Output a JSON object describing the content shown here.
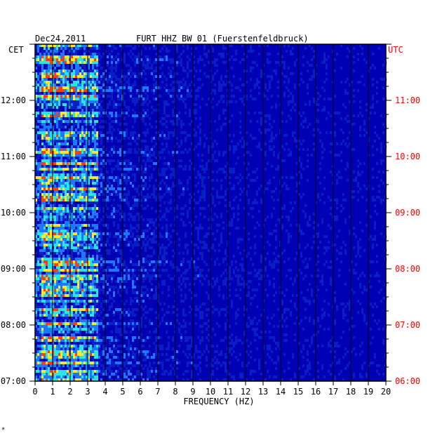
{
  "header": {
    "date": "Dec24,2011",
    "station": "FURT HHZ BW 01 (Fuerstenfeldbruck)"
  },
  "chart_data": {
    "type": "heatmap",
    "title": "FURT HHZ BW 01 (Fuerstenfeldbruck)",
    "date": "Dec24,2011",
    "xlabel": "FREQUENCY (HZ)",
    "x_ticks": [
      "0",
      "1",
      "2",
      "3",
      "4",
      "5",
      "6",
      "7",
      "8",
      "9",
      "10",
      "11",
      "12",
      "13",
      "14",
      "15",
      "16",
      "17",
      "18",
      "19",
      "20"
    ],
    "xlim": [
      0,
      20
    ],
    "left_axis": {
      "timezone": "CET",
      "ticks": [
        "07:00",
        "08:00",
        "09:00",
        "10:00",
        "11:00",
        "12:00"
      ],
      "range": [
        "07:00",
        "13:00"
      ]
    },
    "right_axis": {
      "timezone": "UTC",
      "ticks": [
        "06:00",
        "07:00",
        "08:00",
        "09:00",
        "10:00",
        "11:00"
      ],
      "range": [
        "06:00",
        "12:00"
      ]
    },
    "grid": true,
    "description_energy_band_hz": [
      0.3,
      3.5
    ],
    "colors": {
      "background": "#0000b4",
      "low": "#0a1ec8",
      "mid": "#1e78ff",
      "high": "#28e6e6",
      "peak": "#ffe628",
      "max": "#ff3c14",
      "right_axis": "#ff0000"
    }
  },
  "footer": {
    "mark": "*"
  }
}
